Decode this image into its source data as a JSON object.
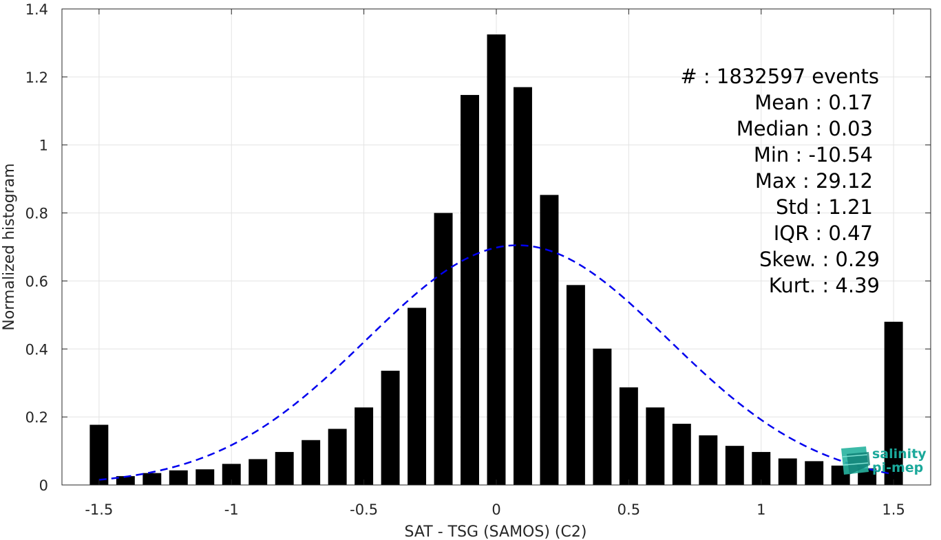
{
  "chart_data": {
    "type": "bar",
    "xlabel": "SAT - TSG (SAMOS) (C2)",
    "ylabel": "Normalized histogram",
    "xlim": [
      -1.64,
      1.64
    ],
    "ylim": [
      0,
      1.4
    ],
    "grid": true,
    "x_ticks": [
      -1.5,
      -1,
      -0.5,
      0,
      0.5,
      1,
      1.5
    ],
    "x_tick_labels": [
      "-1.5",
      "-1",
      "-0.5",
      "0",
      "0.5",
      "1",
      "1.5"
    ],
    "y_ticks": [
      0,
      0.2,
      0.4,
      0.6,
      0.8,
      1,
      1.2,
      1.4
    ],
    "y_tick_labels": [
      "0",
      "0.2",
      "0.4",
      "0.6",
      "0.8",
      "1",
      "1.2",
      "1.4"
    ],
    "bar_width": 0.07,
    "series": [
      {
        "type": "bar",
        "color": "#000000",
        "x": [
          -1.5,
          -1.4,
          -1.3,
          -1.2,
          -1.1,
          -1.0,
          -0.9,
          -0.8,
          -0.7,
          -0.6,
          -0.5,
          -0.4,
          -0.3,
          -0.2,
          -0.1,
          0.0,
          0.1,
          0.2,
          0.3,
          0.4,
          0.5,
          0.6,
          0.7,
          0.8,
          0.9,
          1.0,
          1.1,
          1.2,
          1.3,
          1.4,
          1.5
        ],
        "values": [
          0.177,
          0.026,
          0.035,
          0.043,
          0.046,
          0.062,
          0.076,
          0.097,
          0.132,
          0.165,
          0.228,
          0.336,
          0.521,
          0.8,
          1.147,
          1.325,
          1.17,
          0.853,
          0.588,
          0.401,
          0.287,
          0.228,
          0.18,
          0.146,
          0.115,
          0.097,
          0.078,
          0.07,
          0.057,
          0.049,
          0.48
        ]
      },
      {
        "type": "line",
        "style": "dashed",
        "color": "#0000ee",
        "mean": 0.08,
        "sigma": 0.57,
        "peak": 0.705,
        "x_range": [
          -1.5,
          1.5
        ]
      }
    ],
    "annotations": [
      {
        "label": "#  ",
        "value": ": 1832597 events"
      },
      {
        "label": "Mean ",
        "value": ": 0.17"
      },
      {
        "label": "Median ",
        "value": ": 0.03"
      },
      {
        "label": "Min ",
        "value": ": -10.54"
      },
      {
        "label": "Max ",
        "value": ": 29.12"
      },
      {
        "label": "Std ",
        "value": ": 1.21"
      },
      {
        "label": "IQR ",
        "value": ": 0.47"
      },
      {
        "label": "Skew. ",
        "value": ": 0.29"
      },
      {
        "label": "Kurt. ",
        "value": ": 4.39"
      }
    ]
  },
  "logo": {
    "line1": "salinity",
    "line2": "pi-mep",
    "icon": "globe-cube-icon",
    "color": "#1aa89a"
  }
}
